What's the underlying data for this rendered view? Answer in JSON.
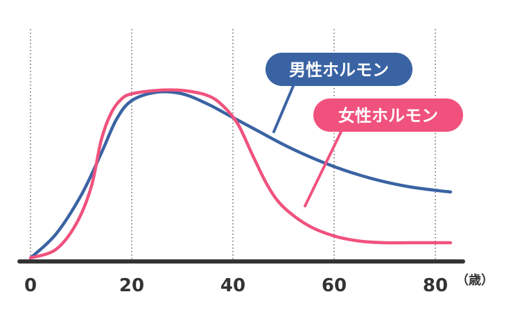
{
  "chart_data": {
    "type": "line",
    "title": "",
    "xlabel": "",
    "ylabel": "",
    "x_unit": "（歳）",
    "xlim": [
      0,
      83
    ],
    "ylim": [
      0,
      100
    ],
    "xticks": [
      0,
      20,
      40,
      60,
      80
    ],
    "grid": "vertical-dotted",
    "series": [
      {
        "name": "男性ホルモン",
        "color": "#3a63a3",
        "points": [
          [
            0,
            0
          ],
          [
            5,
            14
          ],
          [
            10,
            37
          ],
          [
            14,
            62
          ],
          [
            17,
            82
          ],
          [
            20,
            93
          ],
          [
            25,
            98
          ],
          [
            30,
            97
          ],
          [
            35,
            91
          ],
          [
            40,
            83
          ],
          [
            45,
            75
          ],
          [
            50,
            67
          ],
          [
            55,
            60
          ],
          [
            60,
            54
          ],
          [
            65,
            49
          ],
          [
            70,
            45
          ],
          [
            75,
            42
          ],
          [
            80,
            40
          ],
          [
            83,
            39
          ]
        ]
      },
      {
        "name": "女性ホルモン",
        "color": "#f0527d",
        "points": [
          [
            0,
            0
          ],
          [
            5,
            5
          ],
          [
            9,
            20
          ],
          [
            12,
            42
          ],
          [
            14,
            70
          ],
          [
            16,
            86
          ],
          [
            18,
            94
          ],
          [
            20,
            97
          ],
          [
            25,
            99
          ],
          [
            30,
            99
          ],
          [
            35,
            96
          ],
          [
            38,
            90
          ],
          [
            41,
            79
          ],
          [
            44,
            60
          ],
          [
            47,
            42
          ],
          [
            50,
            30
          ],
          [
            55,
            19
          ],
          [
            60,
            13
          ],
          [
            65,
            10
          ],
          [
            70,
            9
          ],
          [
            75,
            9
          ],
          [
            80,
            9
          ],
          [
            83,
            9
          ]
        ]
      }
    ]
  }
}
